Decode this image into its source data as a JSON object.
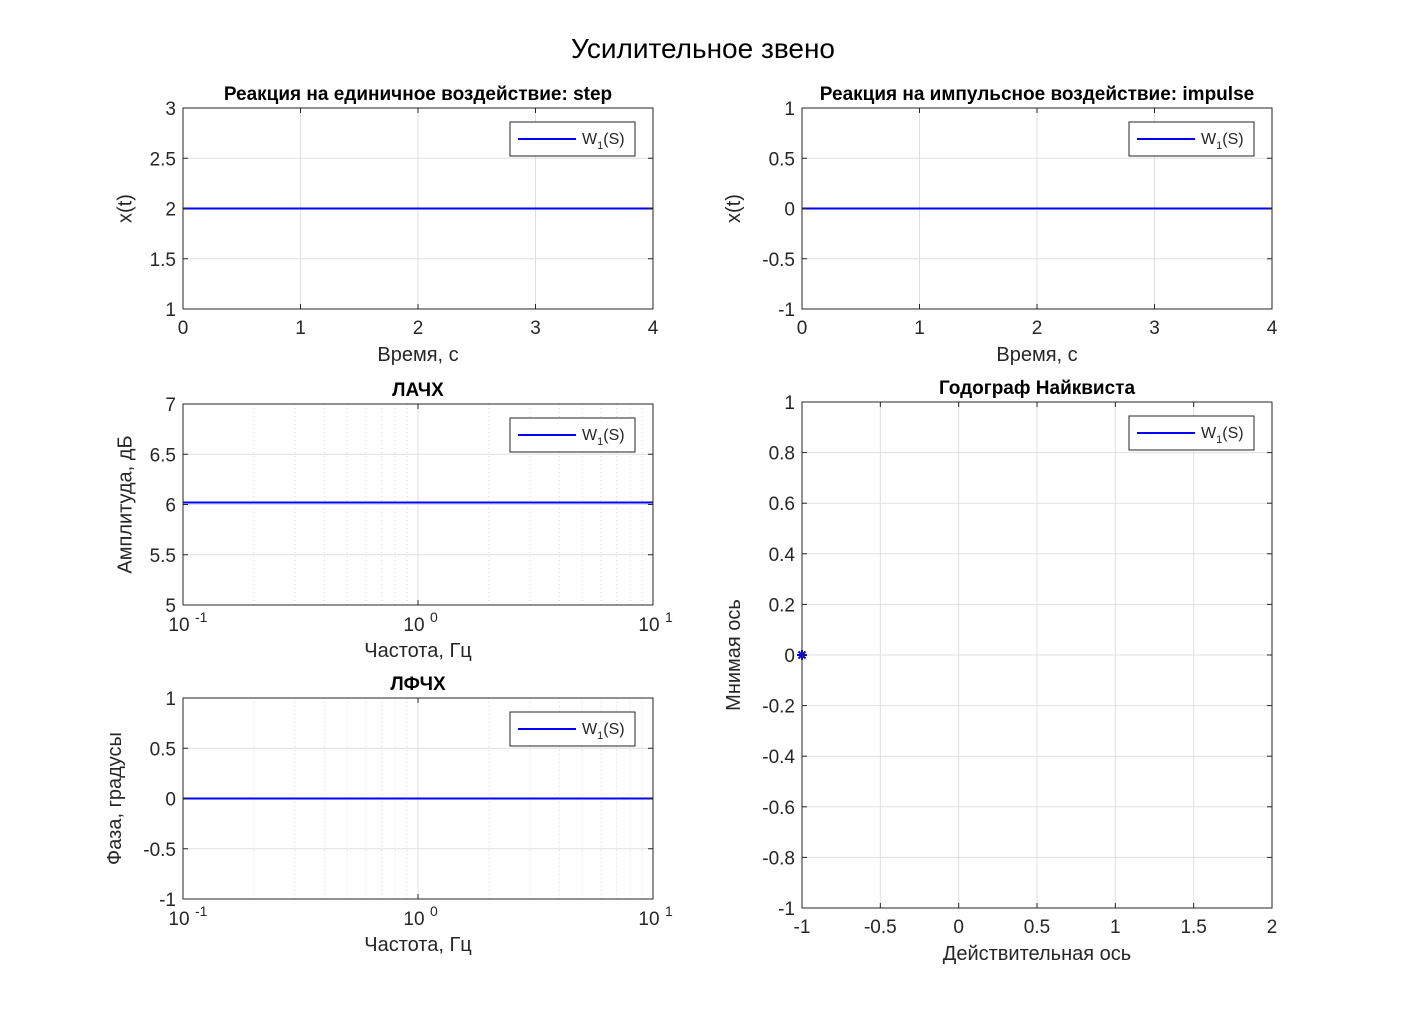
{
  "figure": {
    "title": "Усилительное звено"
  },
  "colors": {
    "series": "#0000ff",
    "axes": "#262626",
    "grid": "#dfdfdf",
    "background": "#ffffff"
  },
  "chart_data": [
    {
      "id": "step",
      "type": "line",
      "title": "Реакция на единичное воздействие: step",
      "xlabel": "Время, с",
      "ylabel": "x(t)",
      "xscale": "linear",
      "xlim": [
        0,
        4
      ],
      "ylim": [
        1,
        3
      ],
      "xticks": [
        0,
        1,
        2,
        3,
        4
      ],
      "xticklabels": [
        "0",
        "1",
        "2",
        "3",
        "4"
      ],
      "yticks": [
        1,
        1.5,
        2,
        2.5,
        3
      ],
      "yticklabels": [
        "1",
        "1.5",
        "2",
        "2.5",
        "3"
      ],
      "grid": true,
      "legend": {
        "placement": "top-right",
        "base": "W",
        "sub": "1",
        "tail": "(S)"
      },
      "series": [
        {
          "name": "W1(S)",
          "x": [
            0,
            4
          ],
          "y": [
            2,
            2
          ]
        }
      ]
    },
    {
      "id": "impulse",
      "type": "line",
      "title": "Реакция на импульсное воздействие: impulse",
      "xlabel": "Время, с",
      "ylabel": "x(t)",
      "xscale": "linear",
      "xlim": [
        0,
        4
      ],
      "ylim": [
        -1,
        1
      ],
      "xticks": [
        0,
        1,
        2,
        3,
        4
      ],
      "xticklabels": [
        "0",
        "1",
        "2",
        "3",
        "4"
      ],
      "yticks": [
        -1,
        -0.5,
        0,
        0.5,
        1
      ],
      "yticklabels": [
        "-1",
        "-0.5",
        "0",
        "0.5",
        "1"
      ],
      "grid": true,
      "legend": {
        "placement": "top-right",
        "base": "W",
        "sub": "1",
        "tail": "(S)"
      },
      "series": [
        {
          "name": "W1(S)",
          "x": [
            0,
            4
          ],
          "y": [
            0,
            0
          ]
        }
      ]
    },
    {
      "id": "lachx",
      "type": "line",
      "title": "ЛАЧХ",
      "xlabel": "Частота, Гц",
      "ylabel": "Амплитуда, дБ",
      "xscale": "log",
      "xlim": [
        0.1,
        10
      ],
      "ylim": [
        5,
        7
      ],
      "xticks": [
        0.1,
        1,
        10
      ],
      "xticklabels_base": [
        "10",
        "10",
        "10"
      ],
      "xticklabels_exp": [
        "-1",
        "0",
        "1"
      ],
      "yticks": [
        5,
        5.5,
        6,
        6.5,
        7
      ],
      "yticklabels": [
        "5",
        "5.5",
        "6",
        "6.5",
        "7"
      ],
      "grid": true,
      "legend": {
        "placement": "top-right",
        "base": "W",
        "sub": "1",
        "tail": "(S)"
      },
      "series": [
        {
          "name": "W1(S)",
          "x": [
            0.1,
            10
          ],
          "y": [
            6.02,
            6.02
          ]
        }
      ]
    },
    {
      "id": "lfchx",
      "type": "line",
      "title": "ЛФЧХ",
      "xlabel": "Частота, Гц",
      "ylabel": "Фаза, градусы",
      "xscale": "log",
      "xlim": [
        0.1,
        10
      ],
      "ylim": [
        -1,
        1
      ],
      "xticks": [
        0.1,
        1,
        10
      ],
      "xticklabels_base": [
        "10",
        "10",
        "10"
      ],
      "xticklabels_exp": [
        "-1",
        "0",
        "1"
      ],
      "yticks": [
        -1,
        -0.5,
        0,
        0.5,
        1
      ],
      "yticklabels": [
        "-1",
        "-0.5",
        "0",
        "0.5",
        "1"
      ],
      "grid": true,
      "legend": {
        "placement": "top-right",
        "base": "W",
        "sub": "1",
        "tail": "(S)"
      },
      "series": [
        {
          "name": "W1(S)",
          "x": [
            0.1,
            10
          ],
          "y": [
            0,
            0
          ]
        }
      ]
    },
    {
      "id": "nyquist",
      "type": "scatter",
      "title": "Годограф Найквиста",
      "xlabel": "Действительная ось",
      "ylabel": "Мнимая ось",
      "xscale": "linear",
      "xlim": [
        -1,
        2
      ],
      "ylim": [
        -1,
        1
      ],
      "xticks": [
        -1,
        -0.5,
        0,
        0.5,
        1,
        1.5,
        2
      ],
      "xticklabels": [
        "-1",
        "-0.5",
        "0",
        "0.5",
        "1",
        "1.5",
        "2"
      ],
      "yticks": [
        -1,
        -0.8,
        -0.6,
        -0.4,
        -0.2,
        0,
        0.2,
        0.4,
        0.6,
        0.8,
        1
      ],
      "yticklabels": [
        "-1",
        "-0.8",
        "-0.6",
        "-0.4",
        "-0.2",
        "0",
        "0.2",
        "0.4",
        "0.6",
        "0.8",
        "1"
      ],
      "grid": true,
      "legend": {
        "placement": "top-right",
        "base": "W",
        "sub": "1",
        "tail": "(S)"
      },
      "series": [
        {
          "name": "W1(S)",
          "x": [],
          "y": []
        }
      ],
      "markers": [
        {
          "x": -1,
          "y": 0,
          "symbol": "*"
        }
      ]
    }
  ]
}
